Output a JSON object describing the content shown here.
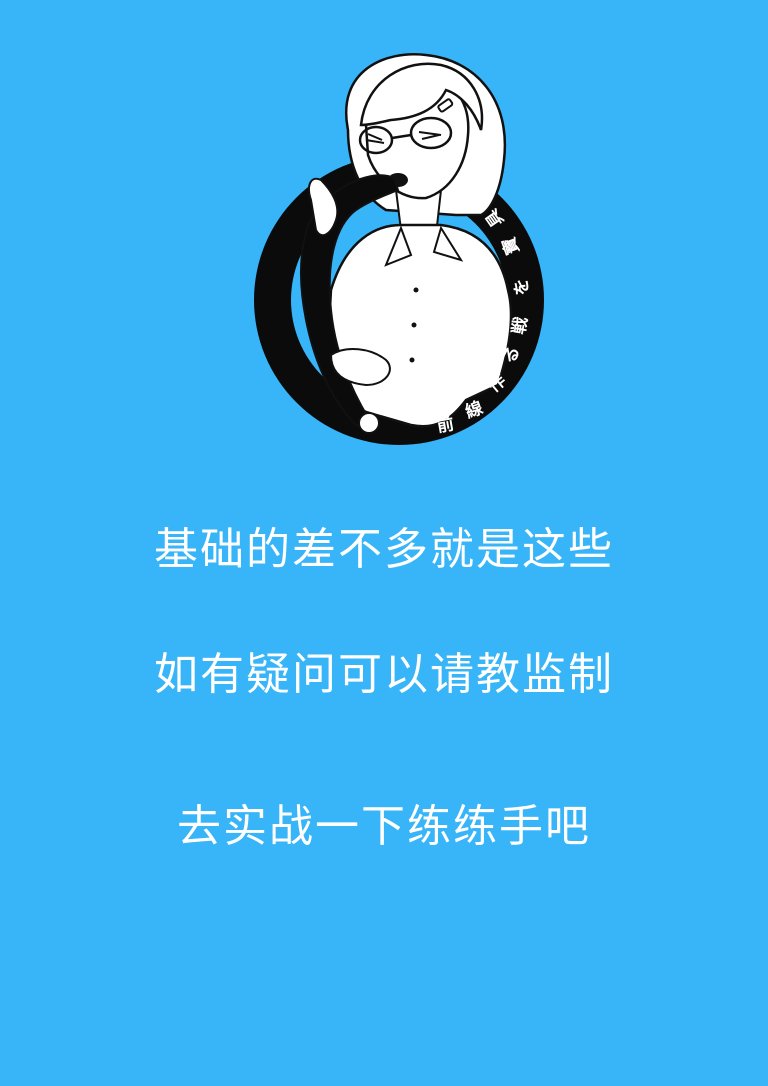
{
  "colors": {
    "background": "#38b4f8",
    "text": "#ffffff",
    "logo_ring": "#0b0b0b",
    "logo_line": "#111111"
  },
  "logo": {
    "icon": "illustrated-girl-with-glasses-logo-icon",
    "ring_text": [
      "前",
      "線",
      "作",
      "る",
      "戦",
      "を",
      "寶",
      "具"
    ]
  },
  "messages": {
    "line_1": "基础的差不多就是这些",
    "line_2": "如有疑问可以请教监制",
    "line_3": "去实战一下练练手吧"
  }
}
